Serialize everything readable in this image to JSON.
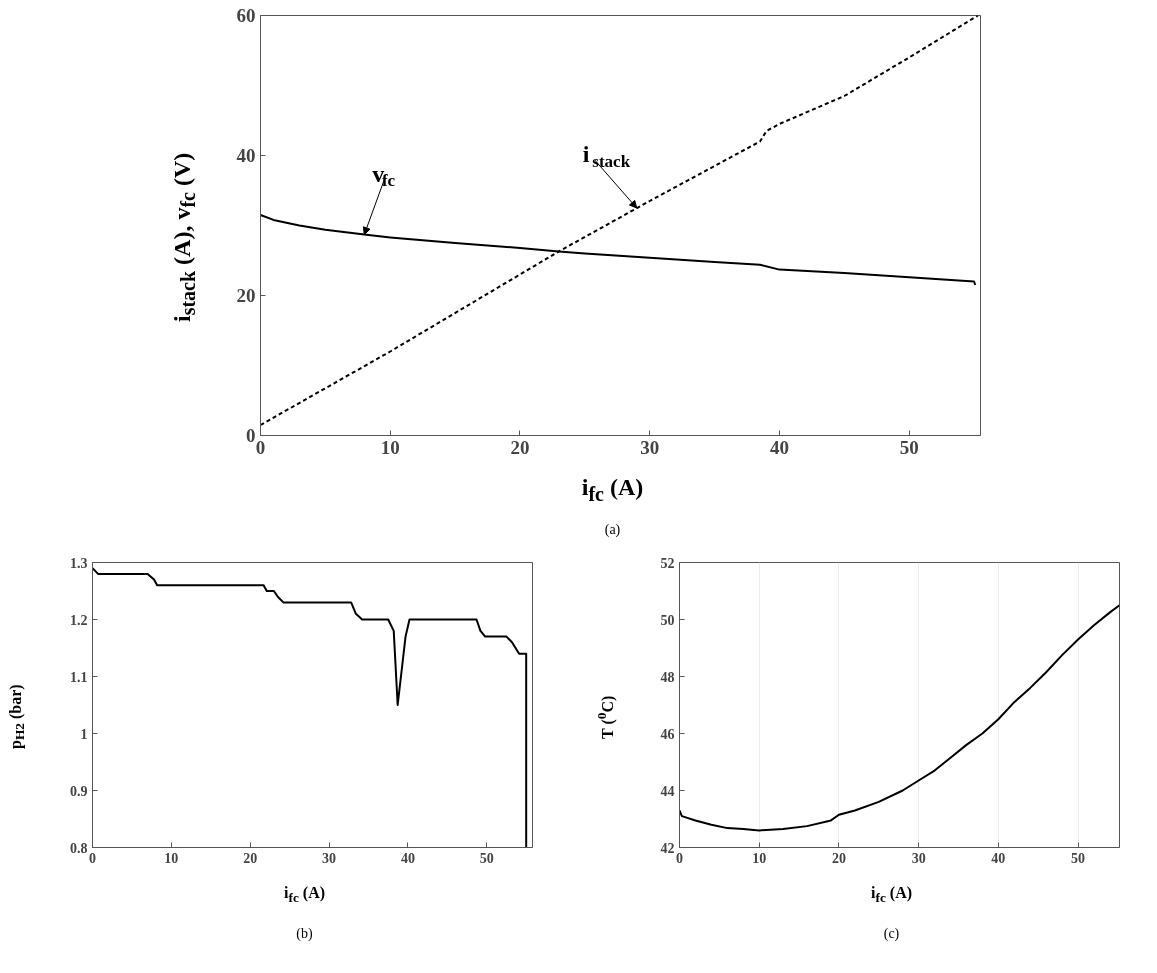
{
  "chart_data": [
    {
      "type": "line",
      "xlabel": "i$_{fc}$ (A)",
      "ylabel": "i$_{stack}$ (A), v$_{fc}$ (V)",
      "xlim": [
        0,
        55.5
      ],
      "ylim": [
        0,
        60
      ],
      "xticks": [
        0,
        10,
        20,
        30,
        40,
        50
      ],
      "yticks": [
        0,
        20,
        40,
        60
      ],
      "grid": false,
      "series": [
        {
          "color": "#000000",
          "line_style": "solid",
          "x": [
            0,
            1,
            3,
            5,
            8,
            10,
            15,
            20,
            23,
            25,
            30,
            35,
            38.5,
            40,
            45,
            50,
            55,
            55.1
          ],
          "values": [
            31.5,
            30.8,
            30.0,
            29.4,
            28.7,
            28.3,
            27.5,
            26.8,
            26.3,
            26.0,
            25.4,
            24.8,
            24.4,
            23.7,
            23.2,
            22.6,
            22.0,
            21.5
          ]
        },
        {
          "color": "#000000",
          "line_style": "dashed",
          "x": [
            0,
            10,
            20,
            23,
            30,
            38.5,
            39,
            40,
            45,
            50,
            55.3
          ],
          "values": [
            1.5,
            12,
            23,
            26.3,
            33.5,
            42,
            43.5,
            44.5,
            48.5,
            54,
            60
          ]
        }
      ],
      "annotations": [
        {
          "text": "v$_{fc}$",
          "x": 8,
          "y": 28.7
        },
        {
          "text": "i$_{stack}$",
          "x": 29,
          "y": 32.5
        },
        "(a)"
      ]
    },
    {
      "type": "line",
      "xlabel": "i$_{fc}$ (A)",
      "ylabel": "p$_{H2}$ (bar)",
      "xlim": [
        0,
        55.8
      ],
      "ylim": [
        0.8,
        1.3
      ],
      "xticks": [
        0,
        10,
        20,
        30,
        40,
        50
      ],
      "yticks": [
        0.8,
        0.9,
        1,
        1.1,
        1.2,
        1.3
      ],
      "grid": false,
      "series": [
        {
          "color": "#000000",
          "line_style": "solid",
          "x": [
            0,
            0.7,
            7,
            7.8,
            8.2,
            21.7,
            22.1,
            23,
            23.5,
            24.2,
            32.8,
            33.4,
            34.2,
            37.5,
            38.2,
            38.7,
            39.7,
            40.2,
            48.7,
            49.2,
            49.8,
            52.5,
            53.2,
            54.1,
            55.0,
            55.0
          ],
          "values": [
            1.29,
            1.28,
            1.28,
            1.27,
            1.26,
            1.26,
            1.25,
            1.25,
            1.24,
            1.23,
            1.23,
            1.21,
            1.2,
            1.2,
            1.18,
            1.05,
            1.17,
            1.2,
            1.2,
            1.18,
            1.17,
            1.17,
            1.16,
            1.14,
            1.14,
            0.8
          ]
        }
      ],
      "annotations": [
        "(b)"
      ]
    },
    {
      "type": "line",
      "xlabel": "i$_{fc}$ (A)",
      "ylabel": "T ($^{0}$C)",
      "xlim": [
        0,
        55.2
      ],
      "ylim": [
        42,
        52
      ],
      "xticks": [
        0,
        10,
        20,
        30,
        40,
        50
      ],
      "yticks": [
        42,
        44,
        46,
        48,
        50,
        52
      ],
      "grid": "x",
      "series": [
        {
          "color": "#000000",
          "line_style": "solid",
          "x": [
            0,
            0.3,
            2,
            4,
            6,
            8,
            10,
            13,
            16,
            19,
            20,
            22,
            25,
            28,
            30,
            32,
            34,
            36,
            38,
            40,
            42,
            44,
            46,
            48,
            50,
            52,
            54,
            55.2
          ],
          "values": [
            43.3,
            43.1,
            42.95,
            42.8,
            42.68,
            42.65,
            42.6,
            42.65,
            42.75,
            42.95,
            43.15,
            43.3,
            43.6,
            44.0,
            44.35,
            44.7,
            45.15,
            45.6,
            46.0,
            46.5,
            47.1,
            47.6,
            48.15,
            48.75,
            49.3,
            49.8,
            50.25,
            50.5
          ]
        }
      ],
      "annotations": [
        "(c)"
      ]
    }
  ]
}
